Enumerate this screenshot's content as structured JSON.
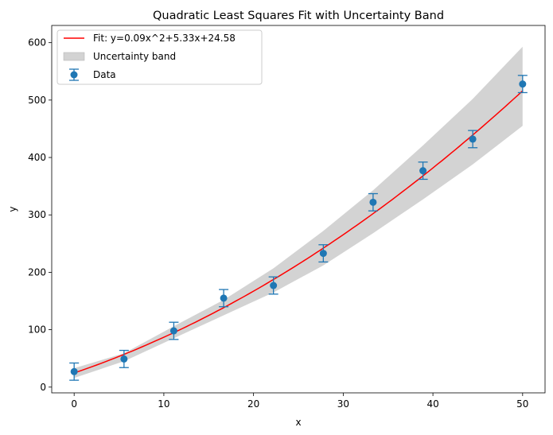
{
  "chart_data": {
    "type": "scatter",
    "title": "Quadratic Least Squares Fit with Uncertainty Band",
    "xlabel": "x",
    "ylabel": "y",
    "xlim": [
      -2.5,
      52.5
    ],
    "ylim": [
      -10,
      630
    ],
    "xticks": [
      0,
      10,
      20,
      30,
      40,
      50
    ],
    "yticks": [
      0,
      100,
      200,
      300,
      400,
      500,
      600
    ],
    "grid": false,
    "legend_position": "top-left",
    "data_series": {
      "name": "Data",
      "color": "#1f77b4",
      "points": [
        {
          "x": 0.0,
          "y": 27,
          "err": 15
        },
        {
          "x": 5.56,
          "y": 49,
          "err": 15
        },
        {
          "x": 11.11,
          "y": 98,
          "err": 15
        },
        {
          "x": 16.67,
          "y": 155,
          "err": 15
        },
        {
          "x": 22.22,
          "y": 177,
          "err": 15
        },
        {
          "x": 27.78,
          "y": 233,
          "err": 15
        },
        {
          "x": 33.33,
          "y": 322,
          "err": 15
        },
        {
          "x": 38.89,
          "y": 377,
          "err": 15
        },
        {
          "x": 44.44,
          "y": 432,
          "err": 15
        },
        {
          "x": 50.0,
          "y": 528,
          "err": 15
        }
      ]
    },
    "fit_series": {
      "name": "Fit: y=0.09x^2+5.33x+24.58",
      "color": "#ff0000",
      "coefficients": {
        "a": 0.09,
        "b": 5.33,
        "c": 24.58
      }
    },
    "band_series": {
      "name": "Uncertainty band",
      "color": "#d3d3d3",
      "x": [
        0,
        5.56,
        11.11,
        16.67,
        22.22,
        27.78,
        33.33,
        38.89,
        44.44,
        50
      ],
      "upper": [
        33,
        59,
        106,
        152,
        207,
        272,
        343,
        421,
        502,
        593
      ],
      "lower": [
        16,
        45,
        85,
        125,
        165,
        212,
        268,
        327,
        388,
        455
      ]
    }
  }
}
